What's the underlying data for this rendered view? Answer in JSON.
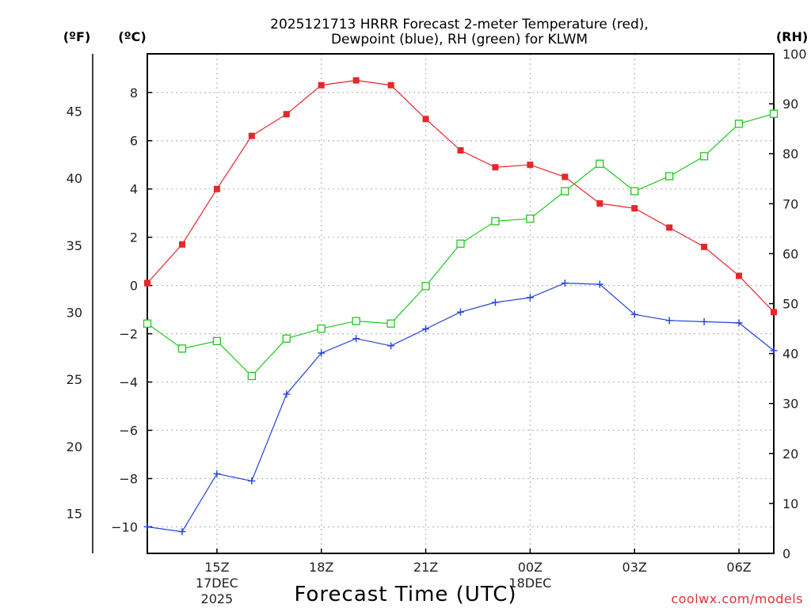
{
  "chart_data": {
    "type": "line",
    "title_line1": "2025121713 HRRR Forecast 2-meter Temperature (red),",
    "title_line2": "Dewpoint (blue), RH (green) for KLWM",
    "xlabel": "Forecast Time (UTC)",
    "credit": "coolwx.com/models",
    "units": {
      "fahrenheit": "(ºF)",
      "celsius": "(ºC)",
      "rh": "(RH)"
    },
    "hours": [
      13,
      14,
      15,
      16,
      17,
      18,
      19,
      20,
      21,
      22,
      23,
      24,
      25,
      26,
      27,
      28,
      29,
      30,
      31
    ],
    "x_ticks": [
      {
        "hour": 15,
        "label": "15Z",
        "date": "17DEC",
        "year": "2025"
      },
      {
        "hour": 18,
        "label": "18Z"
      },
      {
        "hour": 21,
        "label": "21Z"
      },
      {
        "hour": 24,
        "label": "00Z",
        "date": "18DEC"
      },
      {
        "hour": 27,
        "label": "03Z"
      },
      {
        "hour": 30,
        "label": "06Z"
      }
    ],
    "xlim": [
      13,
      31
    ],
    "celsius_axis": {
      "ylim": [
        -11.1,
        9.6
      ],
      "ticks": [
        -10,
        -8,
        -6,
        -4,
        -2,
        0,
        2,
        4,
        6,
        8
      ]
    },
    "fahrenheit_axis": {
      "ticks": [
        15,
        20,
        25,
        30,
        35,
        40,
        45
      ]
    },
    "rh_axis": {
      "ylim": [
        0,
        100
      ],
      "ticks": [
        0,
        10,
        20,
        30,
        40,
        50,
        60,
        70,
        80,
        90,
        100
      ]
    },
    "series": [
      {
        "name": "Temperature",
        "color": "#e8252b",
        "marker": "filled-square",
        "axis": "celsius",
        "values": [
          0.1,
          1.7,
          4.0,
          6.2,
          7.1,
          8.3,
          8.5,
          8.3,
          6.9,
          5.6,
          4.9,
          5.0,
          4.5,
          3.4,
          3.2,
          2.4,
          1.6,
          0.4,
          -1.1
        ]
      },
      {
        "name": "Dewpoint",
        "color": "#2241e0",
        "marker": "plus",
        "axis": "celsius",
        "values": [
          -10.0,
          -10.2,
          -7.8,
          -8.1,
          -4.5,
          -2.8,
          -2.2,
          -2.5,
          -1.8,
          -1.1,
          -0.7,
          -0.5,
          0.1,
          0.05,
          -1.2,
          -1.45,
          -1.5,
          -1.55,
          -2.7
        ]
      },
      {
        "name": "RH",
        "color": "#1ec81e",
        "marker": "open-square",
        "axis": "rh",
        "values": [
          46,
          41,
          42.5,
          35.5,
          43,
          45,
          46.5,
          46,
          53.5,
          62,
          66.5,
          67,
          72.5,
          78,
          72.5,
          75.5,
          79.5,
          86,
          88
        ]
      }
    ]
  }
}
